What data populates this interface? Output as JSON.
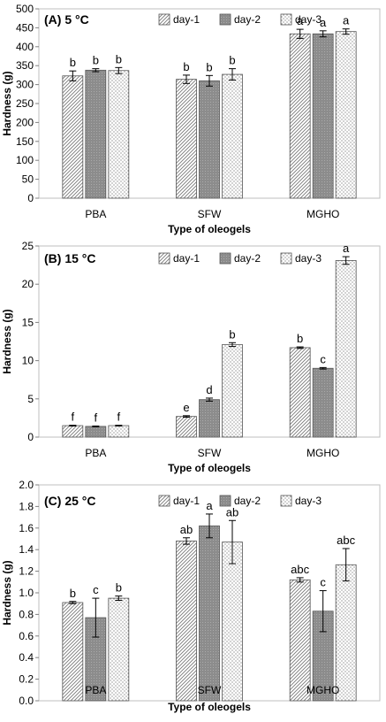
{
  "chart_data": [
    {
      "type": "bar",
      "title": "(A) 5 °C",
      "xlabel": "Type of oleogels",
      "ylabel": "Hardness (g)",
      "ylim": [
        0,
        500
      ],
      "ytick_step": 50,
      "ytick_decimals": 0,
      "categories": [
        "PBA",
        "SFW",
        "MGHO"
      ],
      "legend": "top-center",
      "series": [
        {
          "name": "day-1",
          "values": [
            323,
            314,
            434
          ],
          "errors": [
            13,
            11,
            12
          ],
          "labels": [
            "b",
            "b",
            "a"
          ]
        },
        {
          "name": "day-2",
          "values": [
            338,
            310,
            434
          ],
          "errors": [
            4,
            14,
            8
          ],
          "labels": [
            "b",
            "b",
            "a"
          ]
        },
        {
          "name": "day-3",
          "values": [
            337,
            327,
            440
          ],
          "errors": [
            8,
            15,
            7
          ],
          "labels": [
            "b",
            "b",
            "a"
          ]
        }
      ]
    },
    {
      "type": "bar",
      "title": "(B) 15 °C",
      "xlabel": "Type of oleogels",
      "ylabel": "Hardness (g)",
      "ylim": [
        0,
        25
      ],
      "ytick_step": 5,
      "ytick_decimals": 0,
      "categories": [
        "PBA",
        "SFW",
        "MGHO"
      ],
      "legend": "top-center",
      "series": [
        {
          "name": "day-1",
          "values": [
            1.5,
            2.7,
            11.7
          ],
          "errors": [
            0.05,
            0.1,
            0.1
          ],
          "labels": [
            "f",
            "e",
            "b"
          ]
        },
        {
          "name": "day-2",
          "values": [
            1.4,
            4.9,
            9.0
          ],
          "errors": [
            0.05,
            0.2,
            0.1
          ],
          "labels": [
            "f",
            "d",
            "c"
          ]
        },
        {
          "name": "day-3",
          "values": [
            1.5,
            12.1,
            23.1
          ],
          "errors": [
            0.05,
            0.25,
            0.5
          ],
          "labels": [
            "f",
            "b",
            "a"
          ]
        }
      ]
    },
    {
      "type": "bar",
      "title": "(C) 25 °C",
      "xlabel": "Type of oleogels",
      "ylabel": "Hardness (g)",
      "ylim": [
        0,
        2
      ],
      "ytick_step": 0.2,
      "ytick_decimals": 1,
      "categories": [
        "PBA",
        "SFW",
        "MGHO"
      ],
      "legend": "top-center",
      "series": [
        {
          "name": "day-1",
          "values": [
            0.91,
            1.48,
            1.12
          ],
          "errors": [
            0.01,
            0.03,
            0.02
          ],
          "labels": [
            "b",
            "ab",
            "abc"
          ]
        },
        {
          "name": "day-2",
          "values": [
            0.77,
            1.62,
            0.83
          ],
          "errors": [
            0.18,
            0.11,
            0.19
          ],
          "labels": [
            "c",
            "a",
            "c"
          ]
        },
        {
          "name": "day-3",
          "values": [
            0.95,
            1.47,
            1.26
          ],
          "errors": [
            0.02,
            0.2,
            0.15
          ],
          "labels": [
            "b",
            "ab",
            "abc"
          ]
        }
      ]
    }
  ]
}
